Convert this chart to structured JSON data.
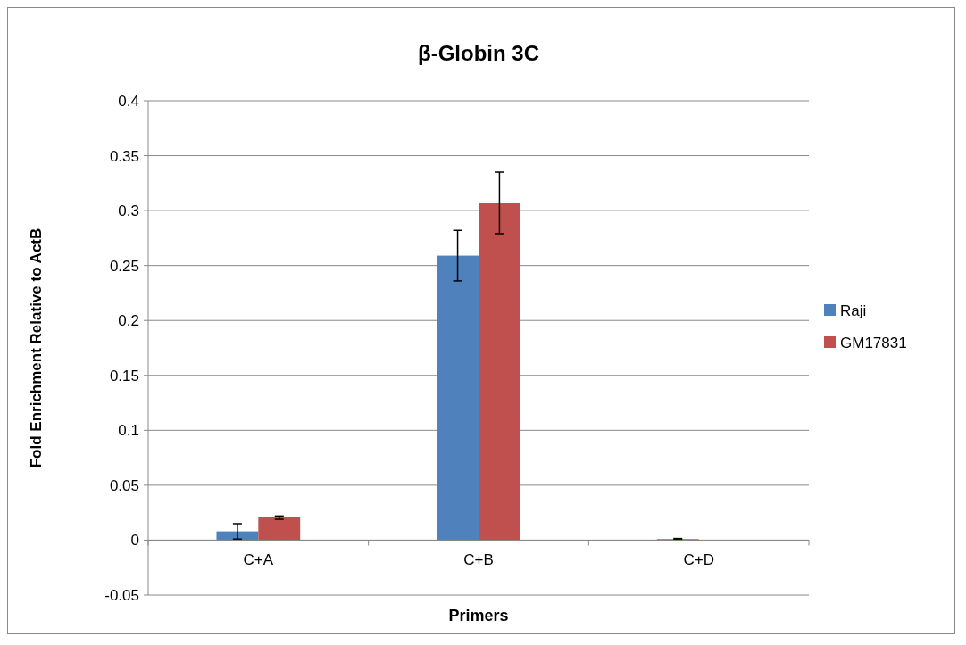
{
  "chart_data": {
    "type": "bar",
    "title": "β-Globin 3C",
    "xlabel": "Primers",
    "ylabel": "Fold Enrichment Relative to ActB",
    "categories": [
      "C+A",
      "C+B",
      "C+D"
    ],
    "series": [
      {
        "name": "Raji",
        "color": "#4f81bd",
        "values": [
          0.008,
          0.259,
          0.001
        ],
        "errors": [
          0.007,
          [
            0.236,
            0.282
          ],
          0.0005
        ]
      },
      {
        "name": "GM17831",
        "color": "#c0504d",
        "values": [
          0.021,
          0.307,
          0
        ],
        "errors": [
          [
            0.019,
            0.022
          ],
          [
            0.279,
            0.335
          ],
          null
        ]
      }
    ],
    "ylim": [
      -0.05,
      0.4
    ],
    "yticks": [
      {
        "value": -0.05,
        "label": "-0.05"
      },
      0,
      0.05,
      0.1,
      0.15,
      0.2,
      0.25,
      0.3,
      0.35,
      0.4
    ],
    "grid": "y",
    "legend": "right"
  }
}
